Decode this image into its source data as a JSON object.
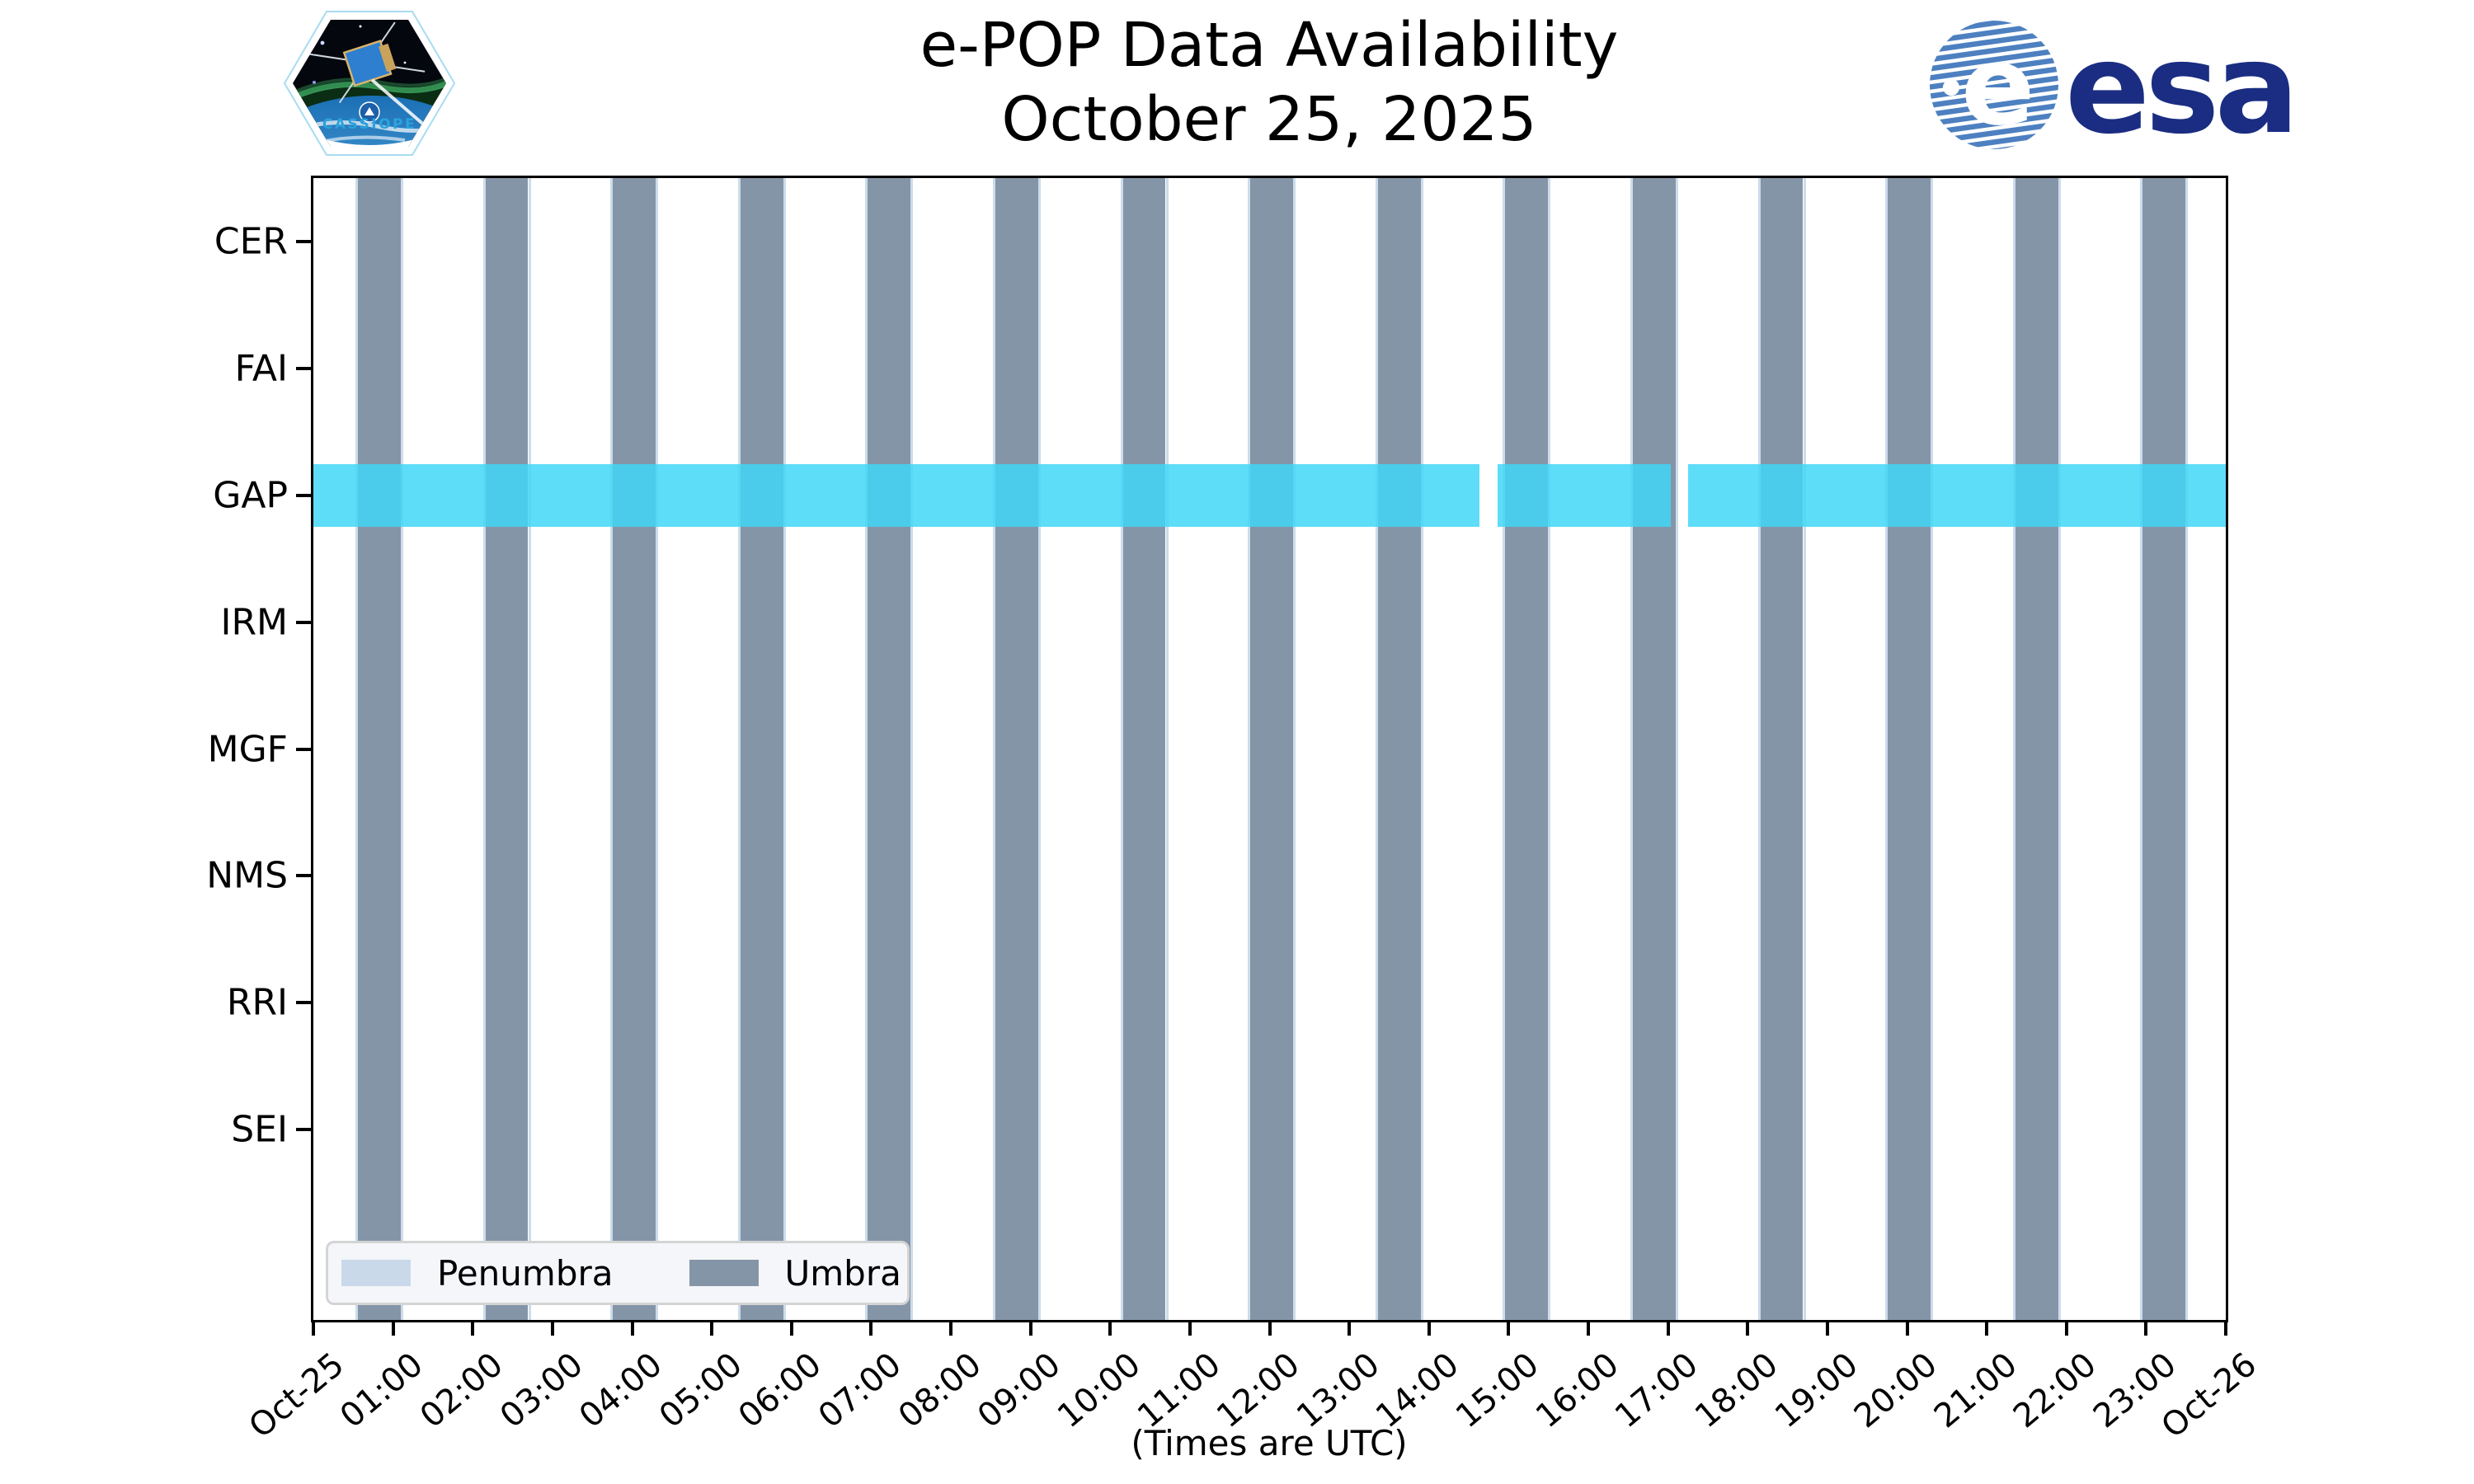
{
  "logos": {
    "cassiope": {
      "label": "CASSIOPE"
    },
    "esa": {
      "label": "esa"
    }
  },
  "chart_data": {
    "type": "timeline-availability",
    "title": "e-POP Data Availability",
    "subtitle": "October 25, 2025",
    "x_axis": {
      "label": "(Times are UTC)",
      "range_hours": [
        0,
        24
      ],
      "tick_labels": [
        "Oct-25",
        "01:00",
        "02:00",
        "03:00",
        "04:00",
        "05:00",
        "06:00",
        "07:00",
        "08:00",
        "09:00",
        "10:00",
        "11:00",
        "12:00",
        "13:00",
        "14:00",
        "15:00",
        "16:00",
        "17:00",
        "18:00",
        "19:00",
        "20:00",
        "21:00",
        "22:00",
        "23:00",
        "Oct-26"
      ]
    },
    "y_axis": {
      "categories": [
        "CER",
        "FAI",
        "GAP",
        "IRM",
        "MGF",
        "NMS",
        "RRI",
        "SEI"
      ],
      "total_slots": 9
    },
    "availability": {
      "instrument": "GAP",
      "color": "#3fd6f7",
      "alpha": 0.84,
      "band_height_ratio": 0.494,
      "segments_hours": [
        [
          0,
          14.63
        ],
        [
          14.86,
          17.03
        ],
        [
          17.25,
          24
        ]
      ],
      "segments_utc": [
        [
          "00:00",
          "14:38"
        ],
        [
          "14:52",
          "17:02"
        ],
        [
          "17:15",
          "24:00"
        ]
      ]
    },
    "eclipse": {
      "umbra_color": "#8595a8",
      "penumbra_color": "#ccdcea",
      "orbital_period_hours": 1.6,
      "umbra_duration_hours": 0.538,
      "umbra_intervals_hours": [
        [
          0.558,
          1.096
        ],
        [
          2.158,
          2.696
        ],
        [
          3.758,
          4.296
        ],
        [
          5.358,
          5.896
        ],
        [
          6.958,
          7.496
        ],
        [
          8.558,
          9.096
        ],
        [
          10.158,
          10.696
        ],
        [
          11.758,
          12.296
        ],
        [
          13.358,
          13.896
        ],
        [
          14.958,
          15.496
        ],
        [
          16.558,
          17.096
        ],
        [
          18.158,
          18.696
        ],
        [
          19.758,
          20.296
        ],
        [
          21.358,
          21.896
        ],
        [
          22.958,
          23.496
        ]
      ]
    },
    "legend": {
      "position": "lower left",
      "entries": [
        {
          "label": "Penumbra",
          "color": "#c9d9ea"
        },
        {
          "label": "Umbra",
          "color": "#8595a8"
        }
      ]
    }
  }
}
